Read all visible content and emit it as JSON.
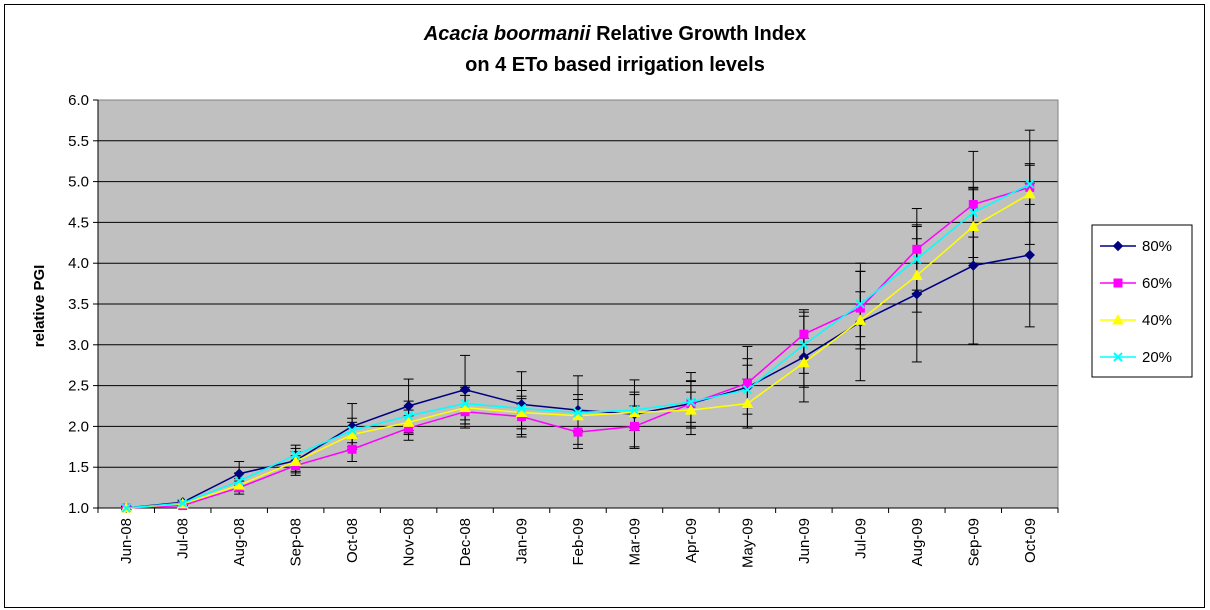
{
  "chart_data": {
    "type": "line",
    "title_italic": "Acacia boormanii",
    "title_rest": " Relative Growth Index",
    "subtitle": "on 4 ETo based irrigation levels",
    "xlabel": "",
    "ylabel": "relative PGI",
    "ylim": [
      1.0,
      6.0
    ],
    "yticks": [
      "1.0",
      "1.5",
      "2.0",
      "2.5",
      "3.0",
      "3.5",
      "4.0",
      "4.5",
      "5.0",
      "5.5",
      "6.0"
    ],
    "categories": [
      "Jun-08",
      "Jul-08",
      "Aug-08",
      "Sep-08",
      "Oct-08",
      "Nov-08",
      "Dec-08",
      "Jan-09",
      "Feb-09",
      "Mar-09",
      "Apr-09",
      "May-09",
      "Jun-09",
      "Jul-09",
      "Aug-09",
      "Sep-09",
      "Oct-09"
    ],
    "grid": true,
    "legend": "right",
    "plot_background": "#c0c0c0",
    "series": [
      {
        "name": "80%",
        "color": "#000080",
        "marker": "diamond",
        "values": [
          1.0,
          1.07,
          1.42,
          1.58,
          2.0,
          2.25,
          2.45,
          2.27,
          2.2,
          2.15,
          2.28,
          2.48,
          2.85,
          3.28,
          3.62,
          3.97,
          4.1
        ],
        "error": [
          0.02,
          0.03,
          0.15,
          0.15,
          0.28,
          0.33,
          0.42,
          0.4,
          0.42,
          0.42,
          0.38,
          0.5,
          0.55,
          0.72,
          0.83,
          0.96,
          0.88
        ]
      },
      {
        "name": "60%",
        "color": "#ff00ff",
        "marker": "square",
        "values": [
          1.0,
          1.03,
          1.25,
          1.52,
          1.72,
          1.98,
          2.18,
          2.12,
          1.93,
          2.0,
          2.28,
          2.53,
          3.13,
          3.45,
          4.17,
          4.72,
          4.93
        ],
        "error": [
          0.02,
          0.03,
          0.08,
          0.12,
          0.15,
          0.15,
          0.2,
          0.22,
          0.2,
          0.25,
          0.28,
          0.3,
          0.3,
          0.45,
          0.5,
          0.65,
          0.7
        ]
      },
      {
        "name": "40%",
        "color": "#ffff00",
        "marker": "triangle",
        "values": [
          1.0,
          1.05,
          1.28,
          1.57,
          1.9,
          2.05,
          2.23,
          2.17,
          2.13,
          2.17,
          2.2,
          2.28,
          2.78,
          3.3,
          3.85,
          4.45,
          4.85
        ],
        "error": [
          0.02,
          0.03,
          0.08,
          0.12,
          0.15,
          0.15,
          0.2,
          0.2,
          0.2,
          0.22,
          0.22,
          0.3,
          0.3,
          0.35,
          0.45,
          0.45,
          0.35
        ]
      },
      {
        "name": "20%",
        "color": "#00ffff",
        "marker": "x",
        "values": [
          1.0,
          1.06,
          1.33,
          1.65,
          1.95,
          2.13,
          2.28,
          2.22,
          2.17,
          2.2,
          2.3,
          2.45,
          3.0,
          3.5,
          4.05,
          4.62,
          4.97
        ],
        "error": [
          0.02,
          0.03,
          0.1,
          0.12,
          0.15,
          0.18,
          0.2,
          0.22,
          0.22,
          0.22,
          0.25,
          0.3,
          0.35,
          0.4,
          0.42,
          0.3,
          0.25
        ]
      }
    ]
  }
}
